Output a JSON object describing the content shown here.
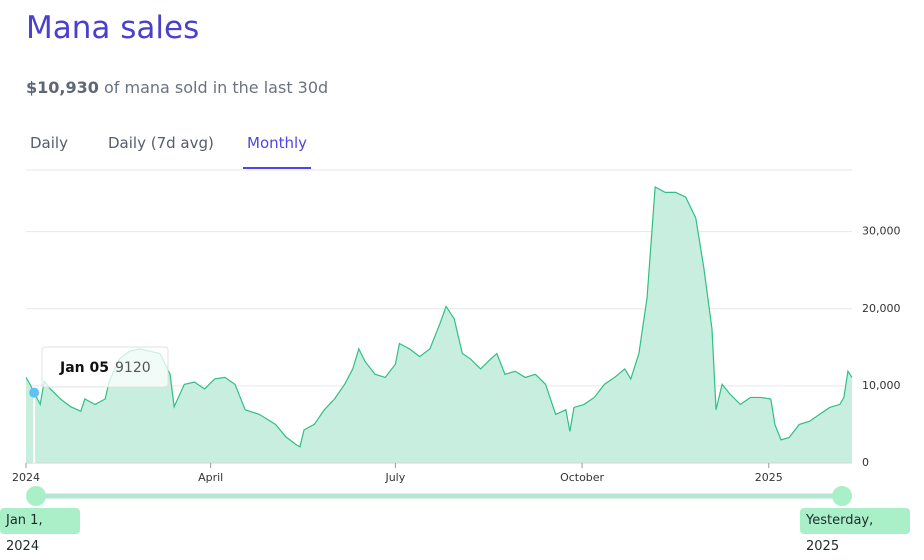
{
  "header": {
    "title": "Mana sales",
    "amount": "$10,930",
    "subtitle": "of mana sold in the last 30d"
  },
  "tabs": [
    "Daily",
    "Daily (7d avg)",
    "Monthly"
  ],
  "active_tab": 2,
  "chart_data": {
    "type": "area",
    "color": "#2fbf85",
    "fill": "#c8eedf",
    "x": [
      0,
      2,
      4,
      7,
      9,
      12,
      17,
      22,
      27,
      29,
      34,
      39,
      41,
      46,
      51,
      56,
      61,
      66,
      71,
      73,
      78,
      83,
      88,
      93,
      98,
      103,
      108,
      115,
      123,
      128,
      133,
      135,
      137,
      142,
      147,
      152,
      157,
      161,
      164,
      167,
      172,
      177,
      182,
      184,
      189,
      194,
      199,
      204,
      207,
      211,
      215,
      219,
      224,
      229,
      232,
      236,
      241,
      246,
      251,
      256,
      261,
      266,
      268,
      270,
      275,
      280,
      285,
      290,
      295,
      298,
      302,
      306,
      310,
      315,
      320,
      325,
      330,
      334,
      338,
      340,
      343,
      347,
      352,
      357,
      362,
      367,
      369,
      372,
      376,
      381,
      386,
      391,
      396,
      401,
      403,
      405,
      407
    ],
    "values": [
      11100,
      10200,
      9120,
      7600,
      10600,
      9600,
      8300,
      7300,
      6700,
      8300,
      7600,
      8300,
      10600,
      13500,
      14500,
      14800,
      14500,
      14200,
      11500,
      7300,
      10200,
      10500,
      9600,
      10900,
      11100,
      10200,
      6900,
      6300,
      5000,
      3400,
      2400,
      2100,
      4300,
      5000,
      6900,
      8300,
      10200,
      12200,
      14800,
      13200,
      11500,
      11100,
      12800,
      15500,
      14800,
      13800,
      14800,
      18100,
      20300,
      18700,
      14200,
      13500,
      12200,
      13500,
      14200,
      11500,
      11900,
      11100,
      11500,
      10200,
      6300,
      6900,
      4100,
      7200,
      7600,
      8500,
      10200,
      11100,
      12200,
      10900,
      14200,
      21400,
      35800,
      35100,
      35100,
      34500,
      31800,
      25300,
      17400,
      6900,
      10200,
      8900,
      7600,
      8500,
      8500,
      8300,
      5000,
      3000,
      3300,
      5000,
      5400,
      6300,
      7200,
      7600,
      8500,
      11900,
      11100
    ],
    "xlim": [
      0,
      407
    ],
    "xticks": [
      {
        "value": 0,
        "label": "2024"
      },
      {
        "value": 91,
        "label": "April"
      },
      {
        "value": 182,
        "label": "July"
      },
      {
        "value": 274,
        "label": "October"
      },
      {
        "value": 366,
        "label": "2025"
      }
    ],
    "ylim": [
      0,
      38000
    ],
    "yticks": [
      0,
      {
        "value": 10000,
        "label": "10,000"
      },
      {
        "value": 20000,
        "label": "20,000"
      },
      {
        "value": 30000,
        "label": "30,000"
      }
    ],
    "grid": true
  },
  "tooltip": {
    "date": "Jan 05",
    "point": 2
  },
  "slider": {
    "start": "Jan 1, 2024",
    "end": "Yesterday, 2025"
  }
}
